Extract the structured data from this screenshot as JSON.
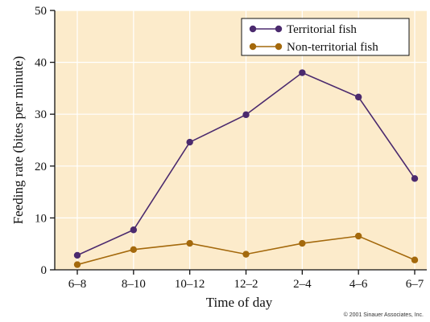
{
  "chart_data": {
    "type": "line",
    "categories": [
      "6–8",
      "8–10",
      "10–12",
      "12–2",
      "2–4",
      "4–6",
      "6–7"
    ],
    "series": [
      {
        "name": "Territorial fish",
        "color": "#4b2a6e",
        "values": [
          2.8,
          7.7,
          24.6,
          29.9,
          38.0,
          33.3,
          17.6
        ]
      },
      {
        "name": "Non-territorial fish",
        "color": "#a4690c",
        "values": [
          1.0,
          3.9,
          5.1,
          3.0,
          5.1,
          6.5,
          1.9
        ]
      }
    ],
    "xlabel": "Time of day",
    "ylabel": "Feeding rate (bites per minute)",
    "ylim": [
      0,
      50
    ],
    "yticks": [
      0,
      10,
      20,
      30,
      40,
      50
    ],
    "grid": true,
    "legend": "top-right",
    "background_color": "#fcebcb",
    "grid_color": "#ffffff"
  },
  "credit": "© 2001 Sinauer Associates, Inc."
}
